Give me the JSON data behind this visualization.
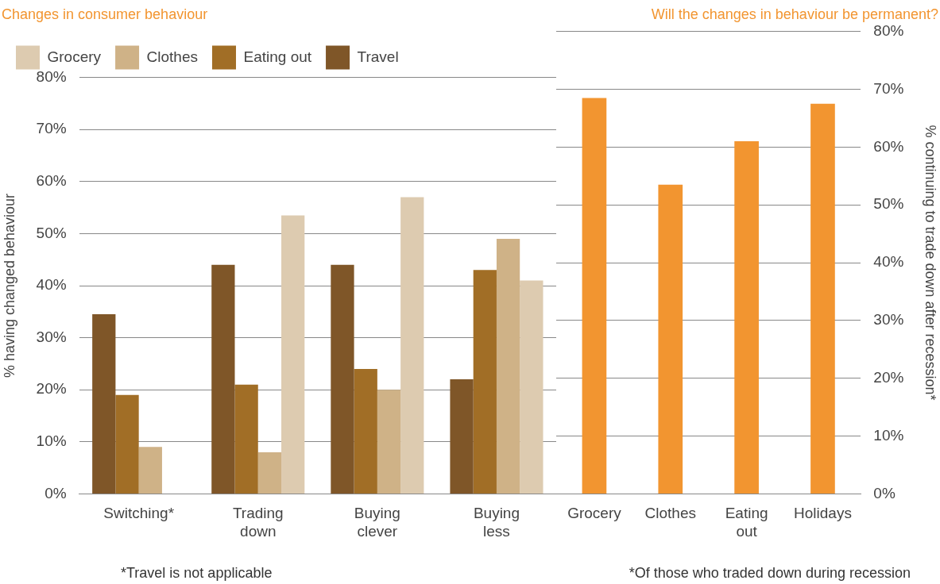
{
  "chart_data": [
    {
      "type": "bar",
      "title": "Changes in consumer behaviour",
      "ylabel": "% having changed behaviour",
      "categories": [
        "Switching*",
        "Trading down",
        "Buying clever",
        "Buying less"
      ],
      "series": [
        {
          "name": "Travel",
          "color": "#7f5628",
          "values": [
            34.5,
            44,
            44,
            22
          ]
        },
        {
          "name": "Eating out",
          "color": "#a16e26",
          "values": [
            19,
            21,
            24,
            43
          ]
        },
        {
          "name": "Clothes",
          "color": "#cfb287",
          "values": [
            9,
            8,
            20,
            49
          ]
        },
        {
          "name": "Grocery",
          "color": "#ddcbb0",
          "values": [
            null,
            53.5,
            57,
            41
          ]
        }
      ],
      "ylim": [
        0,
        80
      ],
      "yticks": [
        {
          "value": 0,
          "label": "0%"
        },
        {
          "value": 10,
          "label": "10%"
        },
        {
          "value": 20,
          "label": "20%"
        },
        {
          "value": 30,
          "label": "30%"
        },
        {
          "value": 40,
          "label": "40%"
        },
        {
          "value": 50,
          "label": "50%"
        },
        {
          "value": 60,
          "label": "60%"
        },
        {
          "value": 70,
          "label": "70%"
        },
        {
          "value": 80,
          "label": "80%"
        }
      ],
      "grid": "y",
      "legend": "top left",
      "annotations": [
        "*Travel is not applicable"
      ]
    },
    {
      "type": "bar",
      "title": "Will the changes in behaviour be permanent?",
      "y2label": "% continuing to trade down after recession*",
      "categories": [
        "Grocery",
        "Clothes",
        "Eating out",
        "Holidays"
      ],
      "series": [
        {
          "color": "#f29530",
          "axis": "y2",
          "values": [
            68.5,
            53.5,
            61,
            67.5
          ]
        }
      ],
      "y2lim": [
        0,
        80
      ],
      "y2ticks": [
        {
          "value": 0,
          "label": "0%"
        },
        {
          "value": 10,
          "label": "10%"
        },
        {
          "value": 20,
          "label": "20%"
        },
        {
          "value": 30,
          "label": "30%"
        },
        {
          "value": 40,
          "label": "40%"
        },
        {
          "value": 50,
          "label": "50%"
        },
        {
          "value": 60,
          "label": "60%"
        },
        {
          "value": 70,
          "label": "70%"
        },
        {
          "value": 80,
          "label": "80%"
        }
      ],
      "grid": "y",
      "annotations": [
        "*Of those who traded down during recession"
      ]
    }
  ]
}
